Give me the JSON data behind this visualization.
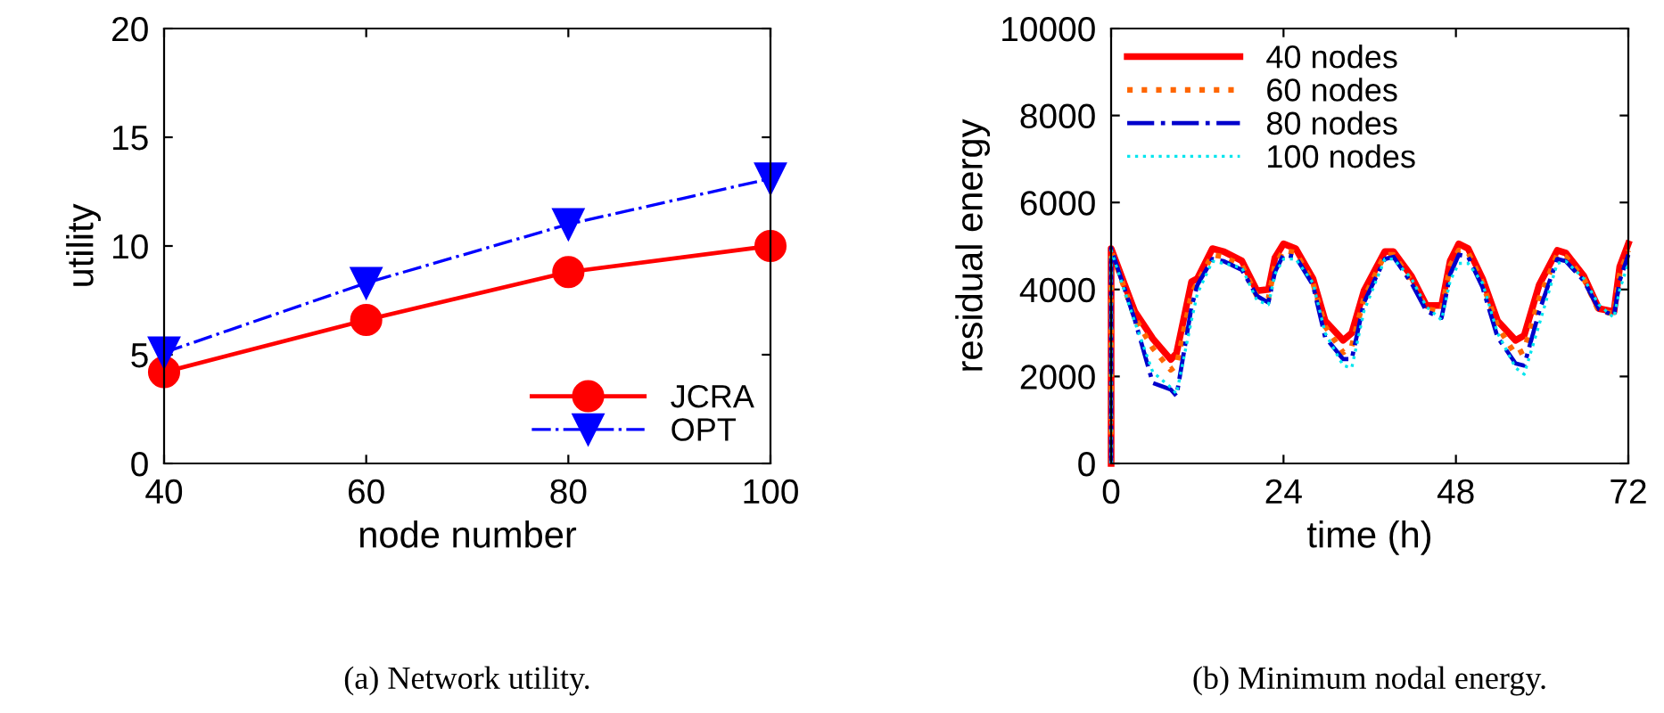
{
  "chart_data": [
    {
      "type": "line",
      "xlabel": "node number",
      "ylabel": "utility",
      "x": [
        40,
        60,
        80,
        100
      ],
      "xlim": [
        40,
        100
      ],
      "xticks": [
        40,
        60,
        80,
        100
      ],
      "ylim": [
        0,
        20
      ],
      "yticks": [
        0,
        5,
        10,
        15,
        20
      ],
      "legend": "bottom right",
      "grid": false,
      "annotations": [
        "(a) Network utility."
      ],
      "series": [
        {
          "name": "JCRA",
          "color": "#ff0000",
          "marker": "circle",
          "line_style": "solid",
          "values": [
            4.2,
            6.6,
            8.8,
            10.0
          ]
        },
        {
          "name": "OPT",
          "color": "#0000ff",
          "marker": "triangle",
          "line_style": "dashdot",
          "values": [
            5.1,
            8.3,
            11.0,
            13.1
          ]
        }
      ]
    },
    {
      "type": "line",
      "xlabel": "time (h)",
      "ylabel": "residual energy",
      "xlim": [
        0,
        72
      ],
      "xticks": [
        0,
        24,
        48,
        72
      ],
      "ylim": [
        0,
        10000
      ],
      "yticks": [
        0,
        2000,
        4000,
        6000,
        8000,
        10000
      ],
      "legend": "top left",
      "grid": false,
      "marker": "none",
      "annotations": [
        "(b) Minimum nodal energy."
      ],
      "x": [
        0,
        0,
        3.3,
        5.8,
        8.3,
        9.1,
        11.2,
        12,
        14.1,
        15.7,
        18.2,
        20.3,
        21.9,
        22.8,
        24,
        25.7,
        28.1,
        29.8,
        32.3,
        33.5,
        35.2,
        38.1,
        39.3,
        41.8,
        43.9,
        46,
        47.2,
        48.4,
        49.7,
        51.7,
        53.8,
        56.3,
        57.5,
        59.6,
        62.1,
        63.3,
        65.8,
        67.9,
        70,
        70.8,
        72
      ],
      "series": [
        {
          "name": "40 nodes",
          "color": "#ff0000",
          "line_style": "solid",
          "values": [
            0,
            4940,
            3490,
            2870,
            2390,
            2530,
            4180,
            4250,
            4940,
            4870,
            4660,
            3970,
            4000,
            4730,
            5050,
            4940,
            4250,
            3280,
            2830,
            3000,
            3970,
            4870,
            4870,
            4310,
            3630,
            3630,
            4660,
            5050,
            4940,
            4250,
            3280,
            2830,
            2940,
            4110,
            4900,
            4840,
            4310,
            3560,
            3490,
            4520,
            5050
          ]
        },
        {
          "name": "60 nodes",
          "color": "#ff6600",
          "line_style": "dotted",
          "values": [
            0,
            4900,
            3350,
            2650,
            2150,
            2250,
            3900,
            4150,
            4800,
            4750,
            4550,
            3850,
            3800,
            4550,
            4900,
            4850,
            4150,
            3150,
            2550,
            2700,
            3800,
            4800,
            4800,
            4200,
            3550,
            3500,
            4550,
            4900,
            4850,
            4150,
            3150,
            2500,
            2600,
            3800,
            4800,
            4750,
            4250,
            3500,
            3450,
            4350,
            4900
          ]
        },
        {
          "name": "80 nodes",
          "color": "#0000cc",
          "line_style": "dashdot",
          "values": [
            0,
            4950,
            3300,
            1850,
            1700,
            1550,
            3600,
            4100,
            4700,
            4650,
            4450,
            3850,
            3700,
            4400,
            4800,
            4750,
            4100,
            2900,
            2400,
            2400,
            3700,
            4700,
            4750,
            4150,
            3500,
            3350,
            4350,
            4800,
            4750,
            4050,
            2900,
            2300,
            2250,
            3500,
            4700,
            4650,
            4200,
            3550,
            3400,
            4200,
            4800
          ]
        },
        {
          "name": "100 nodes",
          "color": "#00e5ee",
          "line_style": "dotted",
          "values": [
            0,
            4900,
            3250,
            2100,
            1750,
            1600,
            3300,
            3900,
            4650,
            4600,
            4500,
            3750,
            3650,
            4350,
            4700,
            4700,
            4150,
            3000,
            2250,
            2200,
            3500,
            4700,
            4700,
            4250,
            3600,
            3300,
            4200,
            4600,
            4600,
            4150,
            3000,
            2200,
            2050,
            3200,
            4600,
            4650,
            4250,
            3650,
            3350,
            4000,
            4600
          ]
        }
      ]
    }
  ]
}
